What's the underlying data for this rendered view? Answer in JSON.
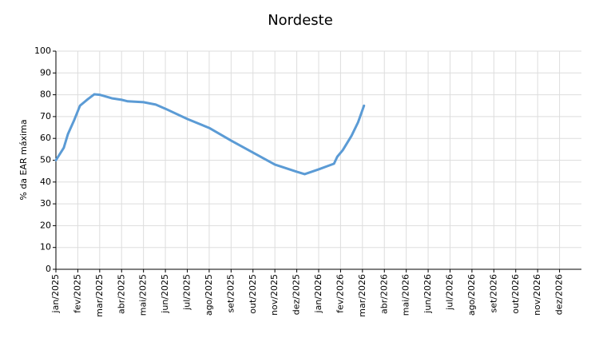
{
  "chart_data": {
    "type": "line",
    "title": "Nordeste",
    "y_label": "% da EAR máxima",
    "x": [
      0,
      0.36,
      0.55,
      0.84,
      1.1,
      1.46,
      1.75,
      2.0,
      2.55,
      3.0,
      3.28,
      4.0,
      4.56,
      5.0,
      6.0,
      7.0,
      8.0,
      9.0,
      10.0,
      11.0,
      11.36,
      12.0,
      12.4,
      12.7,
      12.85,
      13.1,
      13.5,
      13.8,
      14.07
    ],
    "values": [
      50,
      55.7,
      62,
      68.5,
      75,
      78,
      80.2,
      80,
      78.4,
      77.7,
      77,
      76.6,
      75.5,
      73.6,
      68.9,
      64.8,
      59,
      53.5,
      48,
      44.7,
      43.6,
      45.8,
      47.3,
      48.4,
      51.6,
      54.6,
      61.2,
      67.4,
      75
    ],
    "color": "#5b9bd5",
    "xlim": [
      0,
      24
    ],
    "xticks": [
      {
        "value": 0,
        "label": "jan/2025"
      },
      {
        "value": 1,
        "label": "fev/2025"
      },
      {
        "value": 2,
        "label": "mar/2025"
      },
      {
        "value": 3,
        "label": "abr/2025"
      },
      {
        "value": 4,
        "label": "mai/2025"
      },
      {
        "value": 5,
        "label": "jun/2025"
      },
      {
        "value": 6,
        "label": "jul/2025"
      },
      {
        "value": 7,
        "label": "ago/2025"
      },
      {
        "value": 8,
        "label": "set/2025"
      },
      {
        "value": 9,
        "label": "out/2025"
      },
      {
        "value": 10,
        "label": "nov/2025"
      },
      {
        "value": 11,
        "label": "dez/2025"
      },
      {
        "value": 12,
        "label": "jan/2026"
      },
      {
        "value": 13,
        "label": "fev/2026"
      },
      {
        "value": 14,
        "label": "mar/2026"
      },
      {
        "value": 15,
        "label": "abr/2026"
      },
      {
        "value": 16,
        "label": "mai/2026"
      },
      {
        "value": 17,
        "label": "jun/2026"
      },
      {
        "value": 18,
        "label": "jul/2026"
      },
      {
        "value": 19,
        "label": "ago/2026"
      },
      {
        "value": 20,
        "label": "set/2026"
      },
      {
        "value": 21,
        "label": "out/2026"
      },
      {
        "value": 22,
        "label": "nov/2026"
      },
      {
        "value": 23,
        "label": "dez/2026"
      }
    ],
    "ylim": [
      0,
      100
    ],
    "yticks": [
      0,
      10,
      20,
      30,
      40,
      50,
      60,
      70,
      80,
      90,
      100
    ],
    "grid": true
  }
}
